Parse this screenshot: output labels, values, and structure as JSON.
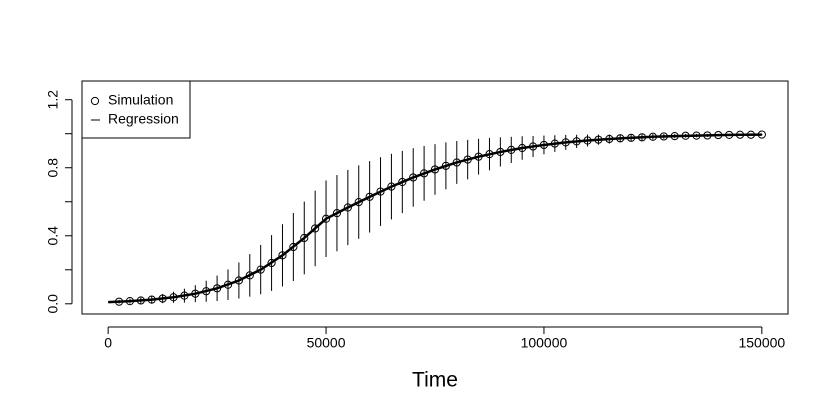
{
  "chart_data": {
    "type": "scatter",
    "xlabel": "Time",
    "xlim": [
      -6000,
      156000
    ],
    "ylim": [
      -0.06,
      1.31
    ],
    "xticks": [
      0,
      50000,
      100000,
      150000
    ],
    "yticks": [
      {
        "value": 0,
        "label": "0.0"
      },
      {
        "value": 0.4,
        "label": "0.4"
      },
      {
        "value": 0.8,
        "label": "0.8"
      },
      {
        "value": 1.2,
        "label": "1.2"
      }
    ],
    "yminor": [
      0.2,
      0.6,
      1.0
    ],
    "legend": "topleft",
    "series": [
      {
        "name": "Simulation",
        "type": "scatter",
        "color": "#000000",
        "x": [
          2500,
          5000,
          7500,
          10000,
          12500,
          15000,
          17500,
          20000,
          22500,
          25000,
          27500,
          30000,
          32500,
          35000,
          37500,
          40000,
          42500,
          45000,
          47500,
          50000,
          52500,
          55000,
          57500,
          60000,
          62500,
          65000,
          67500,
          70000,
          72500,
          75000,
          77500,
          80000,
          82500,
          85000,
          87500,
          90000,
          92500,
          95000,
          97500,
          100000,
          102500,
          105000,
          107500,
          110000,
          112500,
          115000,
          117500,
          120000,
          122500,
          125000,
          127500,
          130000,
          132500,
          135000,
          137500,
          140000,
          142500,
          145000,
          147500,
          150000
        ],
        "values": [
          0.0125,
          0.0157,
          0.0196,
          0.0246,
          0.0308,
          0.0385,
          0.0479,
          0.0595,
          0.0738,
          0.0911,
          0.112,
          0.137,
          0.167,
          0.201,
          0.24,
          0.285,
          0.334,
          0.387,
          0.443,
          0.5,
          0.533,
          0.566,
          0.598,
          0.629,
          0.66,
          0.689,
          0.716,
          0.743,
          0.767,
          0.79,
          0.811,
          0.831,
          0.848,
          0.865,
          0.88,
          0.893,
          0.905,
          0.916,
          0.925,
          0.934,
          0.942,
          0.949,
          0.955,
          0.96,
          0.965,
          0.969,
          0.973,
          0.976,
          0.979,
          0.982,
          0.984,
          0.986,
          0.988,
          0.989,
          0.99,
          0.992,
          0.993,
          0.994,
          0.994,
          0.995
        ],
        "errors": [
          0.011,
          0.014,
          0.017,
          0.022,
          0.027,
          0.033,
          0.041,
          0.05,
          0.062,
          0.075,
          0.09,
          0.106,
          0.125,
          0.145,
          0.164,
          0.183,
          0.2,
          0.214,
          0.222,
          0.225,
          0.224,
          0.221,
          0.216,
          0.21,
          0.202,
          0.193,
          0.183,
          0.172,
          0.161,
          0.149,
          0.138,
          0.126,
          0.116,
          0.105,
          0.095,
          0.086,
          0.077,
          0.069,
          0.062,
          0.055,
          0.049,
          0.044,
          0.039,
          0.035,
          0.03,
          0.027,
          0.024,
          0.021,
          0.019,
          0.016,
          0.014,
          0.012,
          0.011,
          0.01,
          0.009,
          0.007,
          0.006,
          0.005,
          0.005,
          0.004
        ]
      },
      {
        "name": "Regression",
        "type": "line",
        "color": "#000000",
        "x": [
          0,
          5000,
          10000,
          15000,
          20000,
          25000,
          30000,
          35000,
          40000,
          45000,
          50000,
          55000,
          60000,
          65000,
          70000,
          75000,
          80000,
          85000,
          90000,
          95000,
          100000,
          105000,
          110000,
          115000,
          120000,
          125000,
          130000,
          135000,
          140000,
          145000,
          150000
        ],
        "values": [
          0.01,
          0.0157,
          0.0246,
          0.0385,
          0.0595,
          0.0911,
          0.137,
          0.201,
          0.285,
          0.387,
          0.5,
          0.566,
          0.629,
          0.689,
          0.743,
          0.79,
          0.831,
          0.865,
          0.893,
          0.916,
          0.934,
          0.949,
          0.96,
          0.969,
          0.976,
          0.982,
          0.986,
          0.989,
          0.992,
          0.994,
          0.995
        ]
      }
    ]
  }
}
